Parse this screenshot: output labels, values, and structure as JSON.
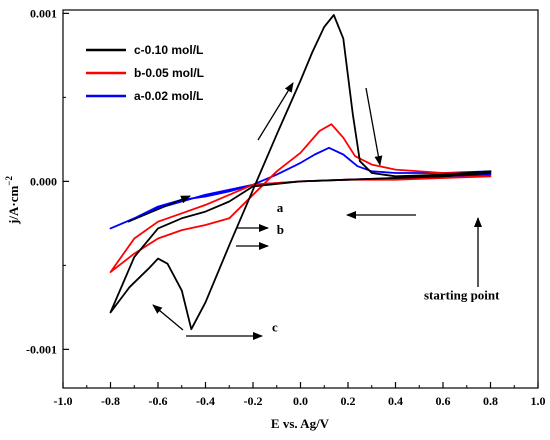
{
  "chart_data": {
    "type": "line",
    "xlabel": "E vs. Ag/V",
    "ylabel": "j/A·cm",
    "ylabel_superscript": "−2",
    "xlim": [
      -1.0,
      1.0
    ],
    "ylim": [
      -0.00123,
      0.00102
    ],
    "xticks": [
      -1.0,
      -0.8,
      -0.6,
      -0.4,
      -0.2,
      0.0,
      0.2,
      0.4,
      0.6,
      0.8,
      1.0
    ],
    "xtick_labels": [
      "-1.0",
      "-0.8",
      "-0.6",
      "-0.4",
      "-0.2",
      "0.0",
      "0.2",
      "0.4",
      "0.6",
      "0.8",
      "1.0"
    ],
    "yticks": [
      0.001,
      0.0,
      -0.001
    ],
    "ytick_labels": [
      "0.001",
      "0.000",
      "-0.001"
    ],
    "grid": false,
    "legend_position": "top-left",
    "series": [
      {
        "name": "c-0.10 mol/L",
        "color": "#000000",
        "x": [
          0.8,
          0.6,
          0.4,
          0.2,
          0.0,
          -0.2,
          -0.3,
          -0.4,
          -0.5,
          -0.6,
          -0.7,
          -0.8,
          -0.72,
          -0.64,
          -0.6,
          -0.56,
          -0.5,
          -0.46,
          -0.4,
          -0.3,
          -0.2,
          -0.1,
          0.0,
          0.05,
          0.1,
          0.14,
          0.18,
          0.22,
          0.25,
          0.3,
          0.4,
          0.6,
          0.8
        ],
        "y": [
          5e-05,
          3e-05,
          2e-05,
          1e-05,
          0.0,
          -3e-05,
          -0.00012,
          -0.00018,
          -0.00022,
          -0.00028,
          -0.00045,
          -0.00078,
          -0.00063,
          -0.00052,
          -0.00046,
          -0.00049,
          -0.00065,
          -0.00088,
          -0.00072,
          -0.00038,
          -5e-05,
          0.00028,
          0.0006,
          0.00077,
          0.00092,
          0.00099,
          0.00085,
          0.0004,
          0.00012,
          5e-05,
          3e-05,
          4e-05,
          6e-05
        ]
      },
      {
        "name": "b-0.05 mol/L",
        "color": "#ff0000",
        "x": [
          0.8,
          0.6,
          0.4,
          0.2,
          0.0,
          -0.2,
          -0.3,
          -0.4,
          -0.5,
          -0.6,
          -0.7,
          -0.8,
          -0.7,
          -0.6,
          -0.5,
          -0.4,
          -0.3,
          -0.2,
          -0.1,
          0.0,
          0.08,
          0.13,
          0.18,
          0.23,
          0.3,
          0.4,
          0.6,
          0.8
        ],
        "y": [
          3e-05,
          2e-05,
          1e-05,
          1e-05,
          0.0,
          -2e-05,
          -8e-05,
          -0.00014,
          -0.00019,
          -0.00024,
          -0.00034,
          -0.00054,
          -0.00043,
          -0.00034,
          -0.00029,
          -0.00026,
          -0.00022,
          -8e-05,
          6e-05,
          0.00017,
          0.0003,
          0.00034,
          0.00026,
          0.00015,
          0.0001,
          7e-05,
          5e-05,
          5e-05
        ]
      },
      {
        "name": "a-0.02 mol/L",
        "color": "#0000ff",
        "x": [
          0.8,
          0.6,
          0.4,
          0.2,
          0.0,
          -0.2,
          -0.4,
          -0.6,
          -0.8,
          -0.7,
          -0.6,
          -0.5,
          -0.4,
          -0.3,
          -0.2,
          -0.1,
          0.0,
          0.06,
          0.12,
          0.18,
          0.24,
          0.3,
          0.4,
          0.6,
          0.8
        ],
        "y": [
          4e-05,
          3e-05,
          2e-05,
          1e-05,
          0.0,
          -2e-05,
          -8e-05,
          -0.00016,
          -0.00028,
          -0.00022,
          -0.00015,
          -0.00011,
          -9e-05,
          -6e-05,
          -2e-05,
          4e-05,
          0.00011,
          0.00016,
          0.0002,
          0.00016,
          9e-05,
          6e-05,
          5e-05,
          5e-05,
          6e-05
        ]
      }
    ],
    "annotations": [
      {
        "text": "a",
        "x": -0.1,
        "y": -0.00016
      },
      {
        "text": "b",
        "x": -0.1,
        "y": -0.00029
      },
      {
        "text": "c",
        "x": -0.12,
        "y": -0.00087
      },
      {
        "text": "starting point",
        "x": 0.52,
        "y": -0.00068
      }
    ]
  }
}
